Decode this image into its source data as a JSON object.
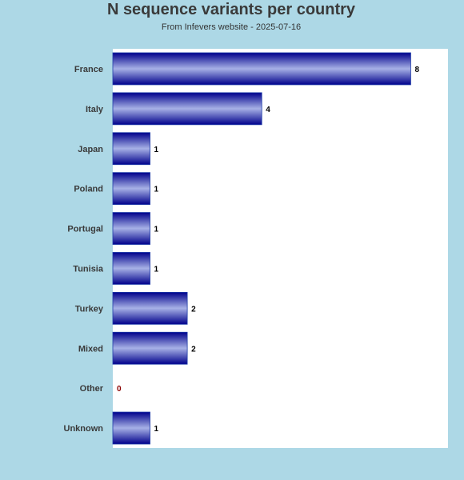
{
  "chart_data": {
    "type": "bar",
    "orientation": "horizontal",
    "title": "N sequence variants per country",
    "subtitle": "From Infevers website - 2025-07-16",
    "categories": [
      "France",
      "Italy",
      "Japan",
      "Poland",
      "Portugal",
      "Tunisia",
      "Turkey",
      "Mixed",
      "Other",
      "Unknown"
    ],
    "values": [
      8,
      4,
      1,
      1,
      1,
      1,
      2,
      2,
      0,
      1
    ],
    "xlim": [
      0,
      9
    ],
    "grid": false,
    "legend": "none",
    "colors": {
      "page_background": "#add8e6",
      "plot_background": "#ffffff",
      "bar_dark": "#00008b",
      "bar_light": "#a7b1e6",
      "bar_border": "#1e3ca8",
      "label_text": "#3a3a3a",
      "value_text": "#000000",
      "zero_value_text": "#8b0000"
    }
  }
}
